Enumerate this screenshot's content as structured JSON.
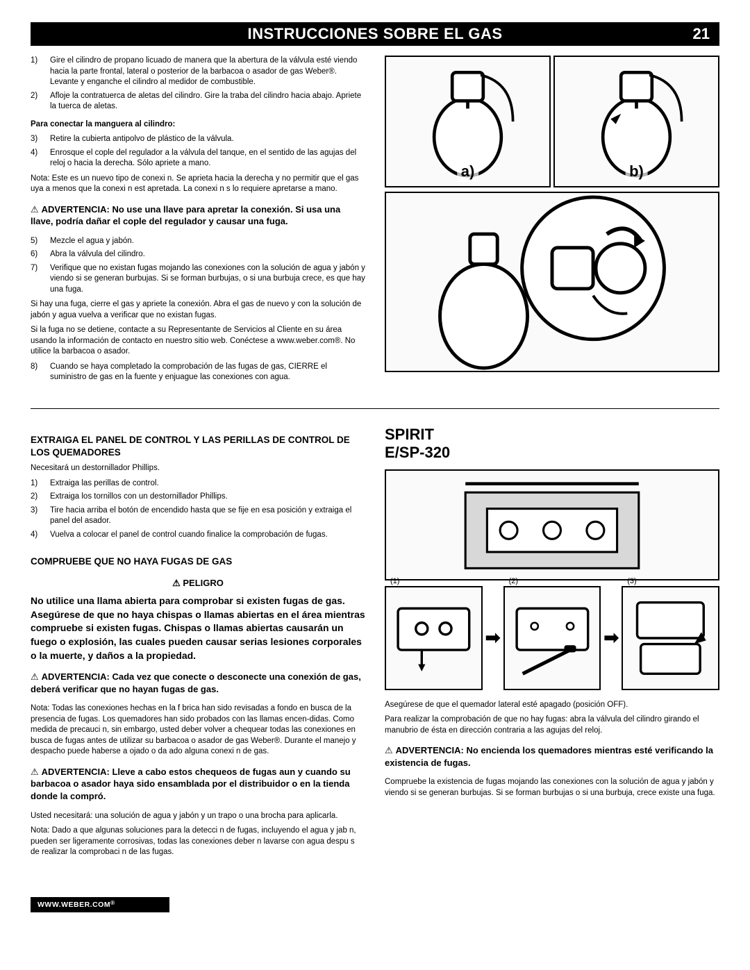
{
  "header": {
    "title": "INSTRUCCIONES SOBRE EL GAS",
    "page": "21"
  },
  "top_left": {
    "steps_a": [
      [
        "1)",
        "Gire el cilindro de propano licuado de manera que la abertura de la válvula esté viendo hacia la parte frontal, lateral o posterior de la barbacoa o asador de gas Weber®. Levante y enganche el cilindro al medidor de combustible."
      ],
      [
        "2)",
        "Afloje la contratuerca de aletas del cilindro. Gire la traba del cilindro hacia abajo. Apriete la tuerca de aletas."
      ]
    ],
    "subhead": "Para conectar la manguera al cilindro:",
    "steps_b": [
      [
        "3)",
        "Retire la cubierta antipolvo de plástico de la válvula."
      ],
      [
        "4)",
        "Enrosque el cople del regulador a la válvula del tanque, en el sentido de las agujas del reloj o hacia la derecha. Sólo apriete a mano."
      ]
    ],
    "note1": "Nota: Este es un nuevo tipo de conexi n. Se aprieta hacia la derecha y no permitir que el gas  uya a menos que la conexi n est  apretada. La conexi n s lo requiere apretarse a mano.",
    "warn1": "ADVERTENCIA: No use una llave para apretar la conexión. Si usa una llave, podría dañar el cople del regulador y causar una fuga.",
    "steps_c": [
      [
        "5)",
        "Mezcle el agua y jabón."
      ],
      [
        "6)",
        "Abra la válvula del cilindro."
      ],
      [
        "7)",
        "Verifique que no existan fugas mojando las conexiones con la solución de agua y jabón y viendo si se generan burbujas. Si se forman burbujas, o si una burbuja crece, es que hay una fuga."
      ]
    ],
    "para_after_c": [
      "Si hay una fuga, cierre el gas y apriete la conexión. Abra el gas de nuevo y con la solución de jabón y agua vuelva a verificar que no existan fugas.",
      "Si la fuga no se detiene, contacte a su Representante de Servicios al Cliente en su área usando la información de contacto en nuestro sitio web. Conéctese a www.weber.com®. No utilice la barbacoa o asador."
    ],
    "steps_d": [
      [
        "8)",
        "Cuando se haya completado la comprobación de las fugas de gas, CIERRE el suministro de gas en la fuente y enjuague las conexiones con agua."
      ]
    ]
  },
  "top_right": {
    "label_a": "a)",
    "label_b": "b)"
  },
  "bottom_left": {
    "heading": "EXTRAIGA EL PANEL DE CONTROL Y LAS PERILLAS DE CONTROL DE LOS QUEMADORES",
    "intro": "Necesitará un destornillador Phillips.",
    "steps": [
      [
        "1)",
        "Extraiga las perillas de control."
      ],
      [
        "2)",
        "Extraiga los tornillos con un destornillador Phillips."
      ],
      [
        "3)",
        "Tire hacia arriba el botón de encendido hasta que se fije en esa posición y extraiga el panel del asador."
      ],
      [
        "4)",
        "Vuelva a colocar el panel de control cuando finalice la comprobación de fugas."
      ]
    ],
    "heading2": "COMPRUEBE QUE NO HAYA FUGAS DE GAS",
    "danger_label": "PELIGRO",
    "danger_text": "No utilice una llama abierta para comprobar si existen fugas de gas. Asegúrese de que no haya chispas o llamas abiertas en el área mientras compruebe si existen fugas. Chispas o llamas abiertas causarán un fuego o explosión, las cuales pueden causar serias lesiones corporales o la muerte, y daños a la propiedad.",
    "warn2": "ADVERTENCIA: Cada vez que conecte o desconecte una conexión de gas, deberá verificar que no hayan fugas de gas.",
    "para2": "Nota: Todas las conexiones hechas en la f brica han sido revisadas a fondo en busca de la presencia de fugas. Los quemadores han sido probados con las llamas encen-didas. Como medida de precauci n, sin embargo, usted deber  volver a chequear todas las conexiones en busca de fugas antes de utilizar su barbacoa o asador de gas Weber®. Durante el manejo y despacho puede haberse a ojado o da ado alguna conexi n de gas.",
    "warn3": "ADVERTENCIA: Lleve a cabo estos chequeos de fugas aun y cuando su barbacoa o asador haya sido ensamblada por el distribuidor o en la tienda donde la compró.",
    "para3": [
      "Usted necesitará: una solución de agua y jabón y un trapo o una brocha para aplicarla.",
      "Nota: Dado a que algunas soluciones para la detecci n de fugas, incluyendo el agua y jab n, pueden ser ligeramente corrosivas, todas las conexiones deber n lavarse con agua despu s de realizar la comprobaci n de las fugas."
    ]
  },
  "bottom_right": {
    "model": "SPIRIT E/SP-320",
    "step_labels": [
      "(1)",
      "(2)",
      "(3)"
    ],
    "para1": [
      "Asegúrese de que el quemador lateral esté apagado (posición OFF).",
      "Para realizar la comprobación de que no hay fugas: abra la válvula del cilindro girando el manubrio de ésta en dirección contraria a las agujas del reloj."
    ],
    "warn": "ADVERTENCIA: No encienda los quemadores mientras esté verificando la existencia de fugas.",
    "para2": "Compruebe la existencia de fugas mojando las conexiones con la solución de agua y jabón y viendo si se generan burbujas. Si se forman burbujas o si una burbuja, crece existe una fuga."
  },
  "footer": {
    "url": "WWW.WEBER.COM",
    "reg": "®"
  }
}
